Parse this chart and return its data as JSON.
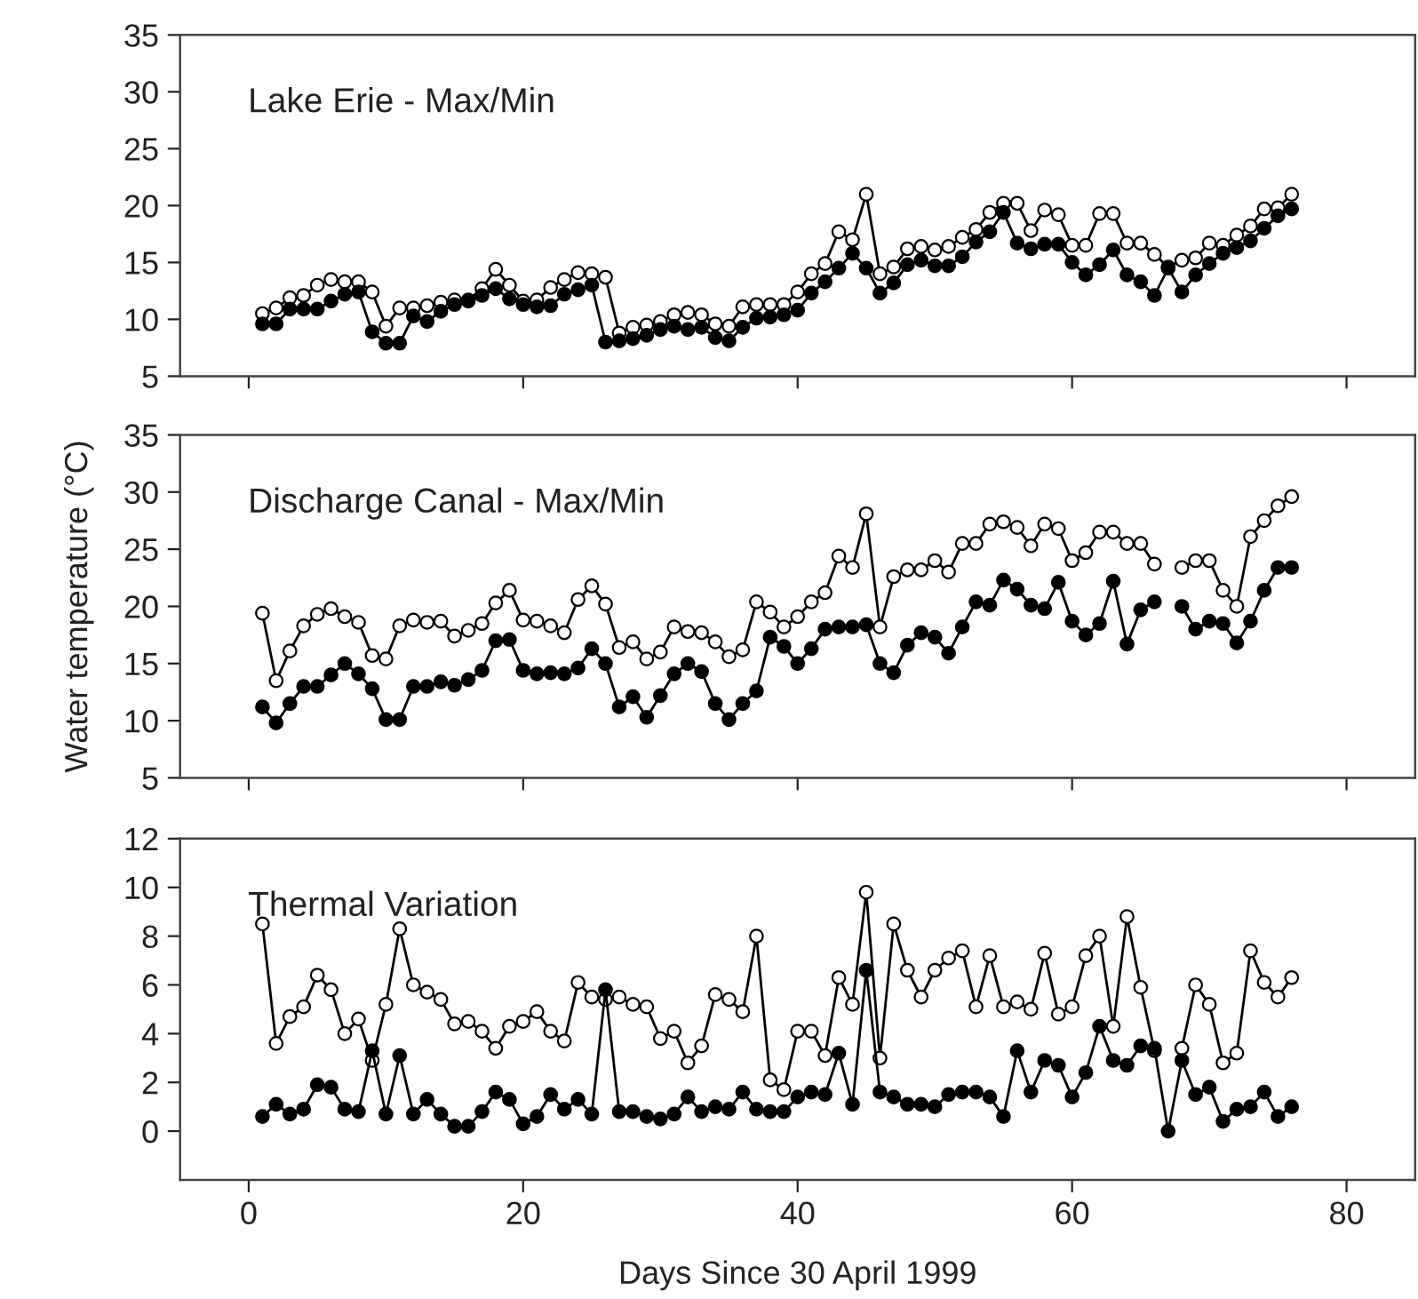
{
  "chart_data": [
    {
      "type": "line",
      "title": "Lake Erie - Max/Min",
      "marker": "circle",
      "tick_labels": "y",
      "x": [
        1,
        2,
        3,
        4,
        5,
        6,
        7,
        8,
        9,
        10,
        11,
        12,
        13,
        14,
        15,
        16,
        17,
        18,
        19,
        20,
        21,
        22,
        23,
        24,
        25,
        26,
        27,
        28,
        29,
        30,
        31,
        32,
        33,
        34,
        35,
        36,
        37,
        38,
        39,
        40,
        41,
        42,
        43,
        44,
        45,
        46,
        47,
        48,
        49,
        50,
        51,
        52,
        53,
        54,
        55,
        56,
        57,
        58,
        59,
        60,
        61,
        62,
        63,
        64,
        65,
        66,
        67,
        68,
        69,
        70,
        71,
        72,
        73,
        74,
        75,
        76
      ],
      "xlim": [
        -5,
        85
      ],
      "xticks": [
        0,
        20,
        40,
        60,
        80
      ],
      "ylim": [
        5,
        35
      ],
      "yticks": [
        5,
        10,
        15,
        20,
        25,
        30,
        35
      ],
      "series": [
        {
          "color": "#ffffff",
          "values": [
            10.5,
            11.0,
            11.9,
            12.1,
            13.0,
            13.5,
            13.3,
            13.3,
            12.4,
            9.4,
            11.0,
            11.0,
            11.2,
            11.5,
            11.7,
            11.7,
            12.7,
            14.4,
            13.0,
            11.6,
            11.7,
            12.8,
            13.5,
            14.1,
            14.0,
            13.7,
            8.8,
            9.3,
            9.5,
            9.8,
            10.4,
            10.6,
            10.4,
            9.6,
            9.4,
            11.1,
            11.3,
            11.3,
            11.3,
            12.4,
            14.0,
            14.9,
            17.7,
            17.0,
            21.0,
            14.0,
            14.6,
            16.2,
            16.4,
            16.1,
            16.4,
            17.2,
            17.9,
            19.4,
            20.2,
            20.2,
            17.8,
            19.6,
            19.2,
            16.5,
            16.5,
            19.3,
            19.3,
            16.7,
            16.7,
            15.7,
            14.6,
            15.2,
            15.4,
            16.7,
            16.5,
            17.4,
            18.2,
            19.7,
            19.8,
            21.0
          ]
        },
        {
          "color": "#000000",
          "values": [
            9.6,
            9.6,
            10.9,
            10.9,
            10.9,
            11.6,
            12.2,
            12.4,
            8.9,
            7.9,
            7.9,
            10.3,
            9.8,
            10.7,
            11.3,
            11.6,
            12.1,
            12.7,
            11.8,
            11.3,
            11.1,
            11.2,
            12.2,
            12.6,
            13.0,
            8.0,
            8.1,
            8.3,
            8.6,
            9.1,
            9.4,
            9.1,
            9.3,
            8.4,
            8.1,
            9.3,
            10.1,
            10.2,
            10.4,
            10.8,
            12.3,
            13.3,
            14.5,
            15.8,
            14.5,
            12.3,
            13.2,
            14.8,
            15.2,
            14.7,
            14.7,
            15.5,
            16.8,
            17.7,
            19.4,
            16.7,
            16.2,
            16.6,
            16.6,
            15.0,
            13.9,
            14.8,
            16.1,
            13.9,
            13.3,
            12.1,
            14.5,
            12.4,
            13.9,
            14.9,
            15.8,
            16.3,
            16.9,
            18.0,
            19.1,
            19.7
          ]
        }
      ]
    },
    {
      "type": "line",
      "title": "Discharge Canal - Max/Min",
      "ylabel": "Water temperature (°C)",
      "marker": "circle",
      "tick_labels": "y",
      "x": [
        1,
        2,
        3,
        4,
        5,
        6,
        7,
        8,
        9,
        10,
        11,
        12,
        13,
        14,
        15,
        16,
        17,
        18,
        19,
        20,
        21,
        22,
        23,
        24,
        25,
        26,
        27,
        28,
        29,
        30,
        31,
        32,
        33,
        34,
        35,
        36,
        37,
        38,
        39,
        40,
        41,
        42,
        43,
        44,
        45,
        46,
        47,
        48,
        49,
        50,
        51,
        52,
        53,
        54,
        55,
        56,
        57,
        58,
        59,
        60,
        61,
        62,
        63,
        64,
        65,
        66,
        67,
        68,
        69,
        70,
        71,
        72,
        73,
        74,
        75,
        76
      ],
      "xlim": [
        -5,
        85
      ],
      "xticks": [
        0,
        20,
        40,
        60,
        80
      ],
      "ylim": [
        5,
        35
      ],
      "yticks": [
        5,
        10,
        15,
        20,
        25,
        30,
        35
      ],
      "series": [
        {
          "color": "#ffffff",
          "values": [
            19.4,
            13.5,
            16.1,
            18.3,
            19.3,
            19.8,
            19.1,
            18.6,
            15.7,
            15.4,
            18.3,
            18.8,
            18.6,
            18.7,
            17.4,
            17.9,
            18.5,
            20.3,
            21.4,
            18.8,
            18.7,
            18.3,
            17.7,
            20.6,
            21.8,
            20.2,
            16.4,
            16.9,
            15.4,
            16.0,
            18.2,
            17.8,
            17.7,
            16.9,
            15.6,
            16.2,
            20.4,
            19.5,
            18.2,
            19.1,
            20.4,
            21.2,
            24.4,
            23.4,
            28.1,
            18.2,
            22.6,
            23.2,
            23.2,
            24.0,
            23.0,
            25.5,
            25.5,
            27.2,
            27.4,
            26.9,
            25.3,
            27.2,
            26.8,
            24.0,
            24.7,
            26.5,
            26.5,
            25.5,
            25.5,
            23.7,
            null,
            23.4,
            24.0,
            24.0,
            21.4,
            20.0,
            26.1,
            27.5,
            28.8,
            29.6
          ]
        },
        {
          "color": "#000000",
          "values": [
            11.2,
            9.8,
            11.5,
            13.0,
            13.0,
            14.0,
            15.0,
            14.1,
            12.8,
            10.1,
            10.1,
            13.0,
            13.0,
            13.4,
            13.1,
            13.6,
            14.4,
            17.0,
            17.1,
            14.4,
            14.1,
            14.2,
            14.1,
            14.6,
            16.3,
            15.0,
            11.2,
            12.1,
            10.3,
            12.2,
            14.1,
            15.0,
            14.3,
            11.5,
            10.1,
            11.5,
            12.6,
            17.3,
            16.5,
            15.0,
            16.3,
            18.0,
            18.2,
            18.2,
            18.4,
            15.0,
            14.2,
            16.6,
            17.7,
            17.3,
            15.9,
            18.2,
            20.4,
            20.1,
            22.3,
            21.5,
            20.1,
            19.8,
            22.1,
            18.7,
            17.5,
            18.5,
            22.2,
            16.7,
            19.7,
            20.4,
            null,
            20.0,
            18.0,
            18.7,
            18.5,
            16.8,
            18.7,
            21.4,
            23.4,
            23.4
          ]
        }
      ]
    },
    {
      "type": "line",
      "title": "Thermal Variation",
      "xlabel": "Days Since 30 April 1999",
      "marker": "circle",
      "x": [
        1,
        2,
        3,
        4,
        5,
        6,
        7,
        8,
        9,
        10,
        11,
        12,
        13,
        14,
        15,
        16,
        17,
        18,
        19,
        20,
        21,
        22,
        23,
        24,
        25,
        26,
        27,
        28,
        29,
        30,
        31,
        32,
        33,
        34,
        35,
        36,
        37,
        38,
        39,
        40,
        41,
        42,
        43,
        44,
        45,
        46,
        47,
        48,
        49,
        50,
        51,
        52,
        53,
        54,
        55,
        56,
        57,
        58,
        59,
        60,
        61,
        62,
        63,
        64,
        65,
        66,
        67,
        68,
        69,
        70,
        71,
        72,
        73,
        74,
        75,
        76
      ],
      "xlim": [
        -5,
        85
      ],
      "xticks": [
        0,
        20,
        40,
        60,
        80
      ],
      "ylim": [
        -2,
        12
      ],
      "yticks": [
        0,
        2,
        4,
        6,
        8,
        10,
        12
      ],
      "series": [
        {
          "color": "#ffffff",
          "values": [
            8.5,
            3.6,
            4.7,
            5.1,
            6.4,
            5.8,
            4.0,
            4.6,
            2.9,
            5.2,
            8.3,
            6.0,
            5.7,
            5.4,
            4.4,
            4.5,
            4.1,
            3.4,
            4.3,
            4.5,
            4.9,
            4.1,
            3.7,
            6.1,
            5.5,
            5.4,
            5.5,
            5.2,
            5.1,
            3.8,
            4.1,
            2.8,
            3.5,
            5.6,
            5.4,
            4.9,
            8.0,
            2.1,
            1.7,
            4.1,
            4.1,
            3.1,
            6.3,
            5.2,
            9.8,
            3.0,
            8.5,
            6.6,
            5.5,
            6.6,
            7.1,
            7.4,
            5.1,
            7.2,
            5.1,
            5.3,
            5.0,
            7.3,
            4.8,
            5.1,
            7.2,
            8.0,
            4.3,
            8.8,
            5.9,
            3.3,
            null,
            3.4,
            6.0,
            5.2,
            2.8,
            3.2,
            7.4,
            6.1,
            5.5,
            6.3
          ]
        },
        {
          "color": "#000000",
          "values": [
            0.6,
            1.1,
            0.7,
            0.9,
            1.9,
            1.8,
            0.9,
            0.8,
            3.3,
            0.7,
            3.1,
            0.7,
            1.3,
            0.7,
            0.2,
            0.2,
            0.8,
            1.6,
            1.3,
            0.3,
            0.6,
            1.5,
            0.9,
            1.3,
            0.7,
            5.8,
            0.8,
            0.8,
            0.6,
            0.5,
            0.7,
            1.4,
            0.8,
            1.0,
            0.9,
            1.6,
            0.9,
            0.8,
            0.8,
            1.4,
            1.6,
            1.5,
            3.2,
            1.1,
            6.6,
            1.6,
            1.4,
            1.1,
            1.1,
            1.0,
            1.5,
            1.6,
            1.6,
            1.4,
            0.6,
            3.3,
            1.6,
            2.9,
            2.7,
            1.4,
            2.4,
            4.3,
            2.9,
            2.7,
            3.5,
            3.4,
            0.0,
            2.9,
            1.5,
            1.8,
            0.4,
            0.9,
            1.0,
            1.6,
            0.6,
            1.0
          ]
        }
      ]
    }
  ]
}
